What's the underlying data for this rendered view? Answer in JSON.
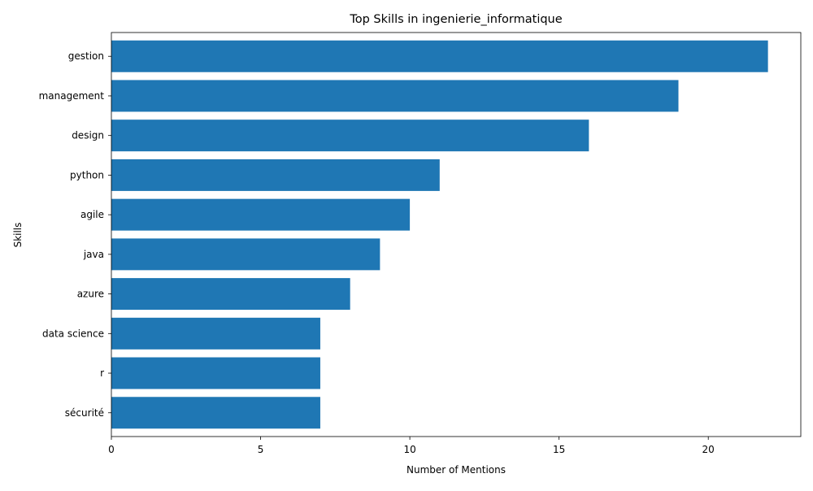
{
  "chart_data": {
    "type": "bar",
    "orientation": "horizontal",
    "title": "Top Skills in ingenierie_informatique",
    "xlabel": "Number of Mentions",
    "ylabel": "Skills",
    "categories": [
      "gestion",
      "management",
      "design",
      "python",
      "agile",
      "java",
      "azure",
      "data science",
      "r",
      "sécurité"
    ],
    "values": [
      22,
      19,
      16,
      11,
      10,
      9,
      8,
      7,
      7,
      7
    ],
    "xlim": [
      0,
      23.1
    ],
    "xticks": [
      0,
      5,
      10,
      15,
      20
    ],
    "grid": false,
    "bar_color": "#1f77b4"
  }
}
